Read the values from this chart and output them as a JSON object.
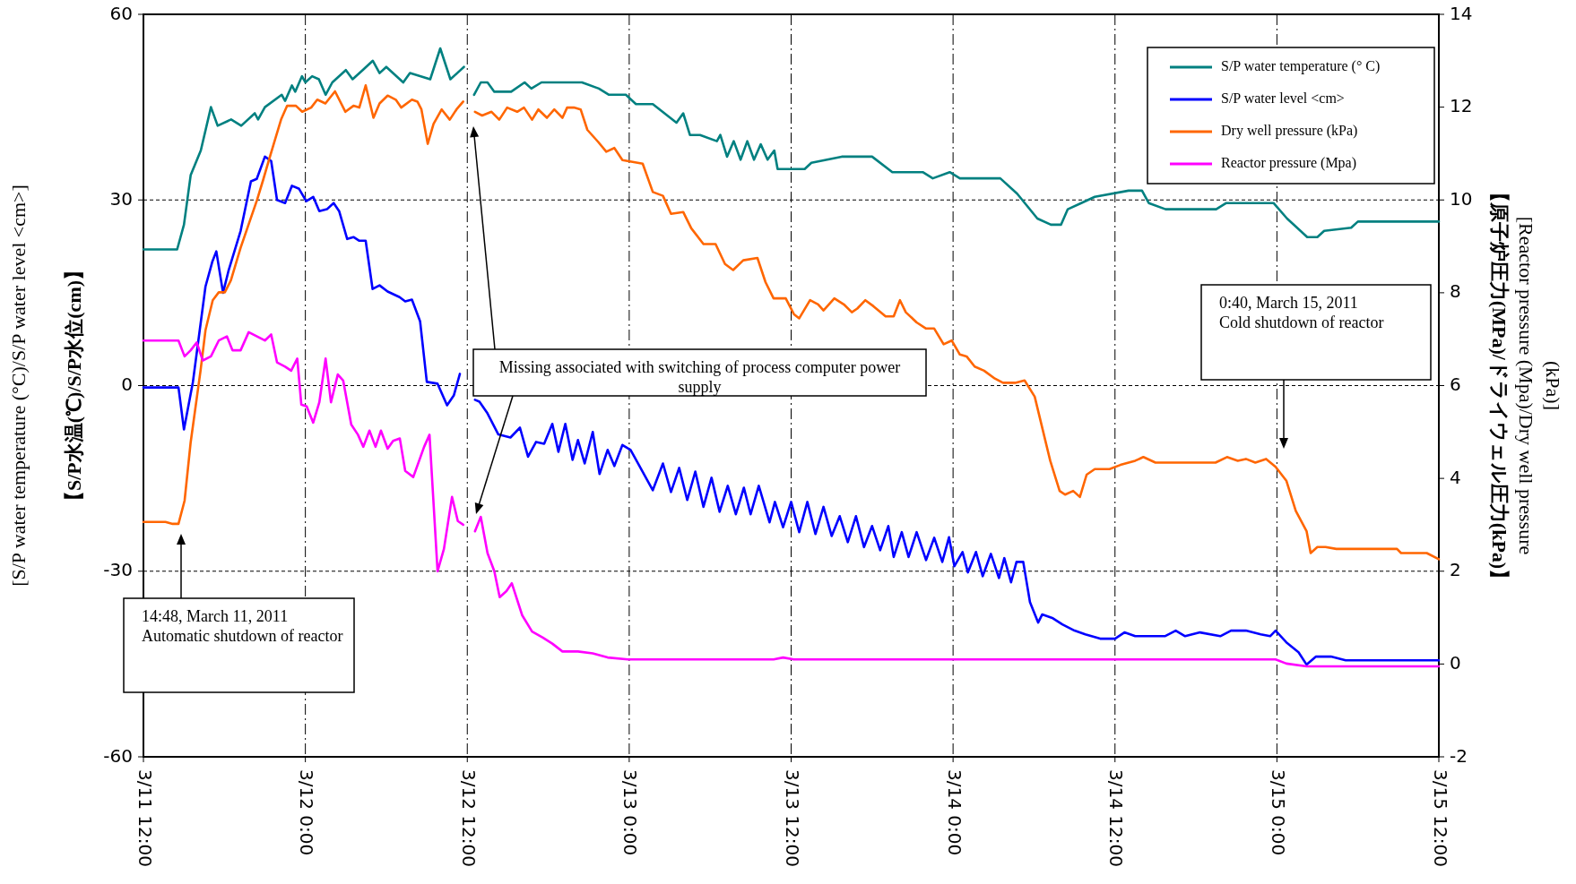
{
  "chart_data": {
    "type": "line",
    "ylabel": "[S/P water temperature (°C)/S/P water level <cm>]\n【S/P水温(℃)/S/P水位(cm)】",
    "y2label": "【原子炉圧力(MPa)/ドライウェル圧力(kPa)】\n[Reactor pressure (Mpa)/Dry well pressure\n(kPa)]",
    "xlim": [
      "2011-03-11T12:00",
      "2011-03-15T12:00"
    ],
    "xticks": [
      {
        "value": "2011-03-11T12:00",
        "label": "3/11 12:00"
      },
      {
        "value": "2011-03-12T00:00",
        "label": "3/12 0:00"
      },
      {
        "value": "2011-03-12T12:00",
        "label": "3/12 12:00"
      },
      {
        "value": "2011-03-13T00:00",
        "label": "3/13 0:00"
      },
      {
        "value": "2011-03-13T12:00",
        "label": "3/13 12:00"
      },
      {
        "value": "2011-03-14T00:00",
        "label": "3/14 0:00"
      },
      {
        "value": "2011-03-14T12:00",
        "label": "3/14 12:00"
      },
      {
        "value": "2011-03-15T00:00",
        "label": "3/15 0:00"
      },
      {
        "value": "2011-03-15T12:00",
        "label": "3/15 12:00"
      }
    ],
    "ylim": [
      -60,
      60
    ],
    "yticks": [
      -60,
      -30,
      0,
      30,
      60
    ],
    "y2lim": [
      -2,
      14
    ],
    "y2ticks": [
      -2,
      0,
      2,
      4,
      6,
      8,
      10,
      12,
      14
    ],
    "grid": true,
    "legend": "top right",
    "line_style": "solid",
    "series": [
      {
        "name": "S/P water temperature (° C)",
        "color": "#008080",
        "x": [
          "2011-03-11T12:00",
          "2011-03-11T14:30",
          "2011-03-11T15:00",
          "2011-03-11T15:30",
          "2011-03-11T16:15",
          "2011-03-11T17:00",
          "2011-03-11T17:30",
          "2011-03-11T18:30",
          "2011-03-11T19:15",
          "2011-03-11T20:15",
          "2011-03-11T20:30",
          "2011-03-11T21:00",
          "2011-03-11T22:15",
          "2011-03-11T22:30",
          "2011-03-11T23:00",
          "2011-03-11T23:15",
          "2011-03-11T23:45",
          "2011-03-12T00:00",
          "2011-03-12T00:30",
          "2011-03-12T01:00",
          "2011-03-12T01:30",
          "2011-03-12T02:00",
          "2011-03-12T03:00",
          "2011-03-12T03:30",
          "2011-03-12T04:15",
          "2011-03-12T05:00",
          "2011-03-12T05:30",
          "2011-03-12T06:00",
          "2011-03-12T07:15",
          "2011-03-12T07:45",
          "2011-03-12T09:15",
          "2011-03-12T10:00",
          "2011-03-12T10:45",
          "2011-03-12T11:15",
          "2011-03-12T11:45"
        ],
        "values": [
          22,
          22,
          26,
          34,
          38,
          45,
          42,
          43,
          42,
          44,
          43,
          45,
          47,
          46,
          48.5,
          47.5,
          50,
          49,
          50,
          49.5,
          47,
          49,
          51,
          49.5,
          51,
          52.5,
          50.5,
          51.5,
          49,
          50.5,
          49.5,
          54.5,
          49.5,
          50.5,
          51.5
        ]
      },
      {
        "color": "#008080",
        "x": [
          "2011-03-12T12:30",
          "2011-03-12T13:00",
          "2011-03-12T13:30",
          "2011-03-12T14:00",
          "2011-03-12T15:15",
          "2011-03-12T16:15",
          "2011-03-12T16:45",
          "2011-03-12T17:30",
          "2011-03-12T20:30",
          "2011-03-12T21:45",
          "2011-03-12T22:30",
          "2011-03-12T23:45",
          "2011-03-13T00:30",
          "2011-03-13T01:45",
          "2011-03-13T03:30",
          "2011-03-13T04:00",
          "2011-03-13T04:30",
          "2011-03-13T05:15",
          "2011-03-13T06:30",
          "2011-03-13T06:45",
          "2011-03-13T07:15",
          "2011-03-13T07:45",
          "2011-03-13T08:15",
          "2011-03-13T08:45",
          "2011-03-13T09:15",
          "2011-03-13T09:45",
          "2011-03-13T10:15",
          "2011-03-13T10:45",
          "2011-03-13T11:00",
          "2011-03-13T13:00",
          "2011-03-13T13:30",
          "2011-03-13T15:45",
          "2011-03-13T18:00",
          "2011-03-13T19:30",
          "2011-03-13T21:45",
          "2011-03-13T22:30",
          "2011-03-13T23:45",
          "2011-03-14T00:30",
          "2011-03-14T03:30",
          "2011-03-14T04:45",
          "2011-03-14T06:15",
          "2011-03-14T07:15",
          "2011-03-14T08:00",
          "2011-03-14T08:30",
          "2011-03-14T09:30",
          "2011-03-14T10:30",
          "2011-03-14T13:00",
          "2011-03-14T14:00",
          "2011-03-14T14:30",
          "2011-03-14T15:45",
          "2011-03-14T19:30",
          "2011-03-14T20:15",
          "2011-03-14T23:45",
          "2011-03-15T00:45",
          "2011-03-15T02:15",
          "2011-03-15T03:00",
          "2011-03-15T03:30",
          "2011-03-15T05:30",
          "2011-03-15T06:00",
          "2011-03-15T12:00"
        ],
        "values": [
          47,
          49,
          49,
          47.5,
          47.5,
          49,
          48,
          49,
          49,
          48,
          47,
          47,
          45.5,
          45.5,
          42.5,
          44,
          40.5,
          40.5,
          39.5,
          40.5,
          37,
          39.5,
          36.5,
          39.5,
          36.5,
          39,
          36.5,
          38,
          35,
          35,
          36,
          37,
          37,
          34.5,
          34.5,
          33.5,
          34.5,
          33.5,
          33.5,
          31,
          27,
          26,
          26,
          28.5,
          29.5,
          30.5,
          31.5,
          31.5,
          29.5,
          28.5,
          28.5,
          29.5,
          29.5,
          27,
          24,
          24,
          25,
          25.5,
          26.5,
          26.5
        ]
      },
      {
        "name": "S/P water level <cm>",
        "color": "#0000ff",
        "x": [
          "2011-03-11T12:00",
          "2011-03-11T14:36",
          "2011-03-11T15:00",
          "2011-03-11T15:40",
          "2011-03-11T16:36",
          "2011-03-11T17:06",
          "2011-03-11T17:24",
          "2011-03-11T17:54",
          "2011-03-11T18:18",
          "2011-03-11T19:12",
          "2011-03-11T19:58",
          "2011-03-11T20:24",
          "2011-03-11T21:00",
          "2011-03-11T21:28",
          "2011-03-11T21:54",
          "2011-03-11T22:30",
          "2011-03-11T23:00",
          "2011-03-11T23:32",
          "2011-03-12T00:04",
          "2011-03-12T00:35",
          "2011-03-12T01:02",
          "2011-03-12T01:36",
          "2011-03-12T02:06",
          "2011-03-12T02:30",
          "2011-03-12T03:06",
          "2011-03-12T03:34",
          "2011-03-12T04:00",
          "2011-03-12T04:28",
          "2011-03-12T04:59",
          "2011-03-12T05:30",
          "2011-03-12T06:06",
          "2011-03-12T06:59",
          "2011-03-12T07:24",
          "2011-03-12T07:54",
          "2011-03-12T08:30",
          "2011-03-12T09:00",
          "2011-03-12T09:48",
          "2011-03-12T10:30",
          "2011-03-12T11:00",
          "2011-03-12T11:27"
        ],
        "values": [
          -0.3,
          -0.3,
          -7.1,
          0.6,
          16,
          20,
          21.7,
          15,
          18.5,
          25,
          33,
          33.4,
          37,
          36.3,
          30,
          29.5,
          32.3,
          31.8,
          29.8,
          30.5,
          28.2,
          28.5,
          29.5,
          28.2,
          23.7,
          24,
          23.4,
          23.4,
          15.6,
          16.2,
          15.2,
          14.3,
          13.6,
          13.9,
          10.4,
          0.6,
          0.3,
          -3.2,
          -1.6,
          1.9
        ]
      },
      {
        "color": "#0000ff",
        "x": [
          "2011-03-12T12:34",
          "2011-03-12T12:54",
          "2011-03-12T13:30",
          "2011-03-12T14:18",
          "2011-03-12T15:12",
          "2011-03-12T15:54",
          "2011-03-12T16:30",
          "2011-03-12T17:06",
          "2011-03-12T17:42",
          "2011-03-12T18:18",
          "2011-03-12T18:45",
          "2011-03-12T19:16",
          "2011-03-12T19:48",
          "2011-03-12T20:12",
          "2011-03-12T20:42",
          "2011-03-12T21:18",
          "2011-03-12T21:48",
          "2011-03-12T22:24",
          "2011-03-12T22:54",
          "2011-03-12T23:30",
          "2011-03-13T00:06",
          "2011-03-13T01:45",
          "2011-03-13T02:30",
          "2011-03-13T03:06",
          "2011-03-13T03:42",
          "2011-03-13T04:18",
          "2011-03-13T04:54",
          "2011-03-13T05:30",
          "2011-03-13T06:06",
          "2011-03-13T06:42",
          "2011-03-13T07:18",
          "2011-03-13T07:54",
          "2011-03-13T08:30",
          "2011-03-13T09:00",
          "2011-03-13T09:36",
          "2011-03-13T10:24",
          "2011-03-13T10:48",
          "2011-03-13T11:24",
          "2011-03-13T12:00",
          "2011-03-13T12:36",
          "2011-03-13T13:12",
          "2011-03-13T13:48",
          "2011-03-13T14:24",
          "2011-03-13T15:00",
          "2011-03-13T15:36",
          "2011-03-13T16:12",
          "2011-03-13T16:48",
          "2011-03-13T17:24",
          "2011-03-13T18:00",
          "2011-03-13T18:36",
          "2011-03-13T19:12",
          "2011-03-13T19:36",
          "2011-03-13T20:12",
          "2011-03-13T20:42",
          "2011-03-13T21:18",
          "2011-03-13T22:00",
          "2011-03-13T22:36",
          "2011-03-13T23:12",
          "2011-03-13T23:42",
          "2011-03-14T00:06",
          "2011-03-14T00:42",
          "2011-03-14T01:06",
          "2011-03-14T01:42",
          "2011-03-14T02:12",
          "2011-03-14T02:48",
          "2011-03-14T03:24",
          "2011-03-14T03:48",
          "2011-03-14T04:18",
          "2011-03-14T04:42",
          "2011-03-14T05:12",
          "2011-03-14T05:42",
          "2011-03-14T06:18",
          "2011-03-14T06:36",
          "2011-03-14T07:24",
          "2011-03-14T08:06",
          "2011-03-14T09:00",
          "2011-03-14T09:48",
          "2011-03-14T10:54",
          "2011-03-14T12:00",
          "2011-03-14T12:42",
          "2011-03-14T13:30",
          "2011-03-14T15:42",
          "2011-03-14T16:30",
          "2011-03-14T17:12",
          "2011-03-14T18:18",
          "2011-03-14T19:48",
          "2011-03-14T20:36",
          "2011-03-14T21:42",
          "2011-03-14T22:48",
          "2011-03-14T23:30",
          "2011-03-14T23:54",
          "2011-03-15T00:42",
          "2011-03-15T01:36",
          "2011-03-15T02:12",
          "2011-03-15T02:54",
          "2011-03-15T04:00",
          "2011-03-15T05:06",
          "2011-03-15T12:00"
        ],
        "values": [
          -2.3,
          -2.6,
          -4.5,
          -7.9,
          -8.4,
          -6.8,
          -11.5,
          -9.1,
          -9.4,
          -6.2,
          -10.7,
          -6.2,
          -12,
          -8.8,
          -12.6,
          -7.5,
          -14.3,
          -10.4,
          -13,
          -9.6,
          -10.4,
          -16.9,
          -12.6,
          -17.2,
          -13.3,
          -18.5,
          -13.9,
          -19.6,
          -14.9,
          -20.4,
          -16.2,
          -20.8,
          -16.5,
          -20.8,
          -16.2,
          -22.1,
          -18.8,
          -22.9,
          -18.8,
          -23.7,
          -18.8,
          -24,
          -19.6,
          -24.3,
          -21.1,
          -25.3,
          -21.1,
          -26.1,
          -22.7,
          -26.6,
          -22.7,
          -27.7,
          -23.7,
          -27.7,
          -23.7,
          -28.2,
          -24.6,
          -28.5,
          -24.5,
          -29.2,
          -26.9,
          -30.2,
          -26.9,
          -30.8,
          -27.2,
          -31.1,
          -27.9,
          -31.8,
          -28.5,
          -28.5,
          -35,
          -38.3,
          -37,
          -37.6,
          -38.6,
          -39.6,
          -40.2,
          -40.9,
          -40.9,
          -39.9,
          -40.5,
          -40.5,
          -39.6,
          -40.5,
          -39.9,
          -40.5,
          -39.6,
          -39.6,
          -40.2,
          -40.5,
          -39.6,
          -41.5,
          -43.1,
          -45.1,
          -43.8,
          -43.8,
          -44.4,
          -44.4
        ]
      },
      {
        "name": "Dry well pressure (kPa)",
        "color": "#ff6600",
        "axis": "y2",
        "x": [
          "2011-03-11T12:00",
          "2011-03-11T13:38",
          "2011-03-11T14:10",
          "2011-03-11T14:36",
          "2011-03-11T15:03",
          "2011-03-11T15:30",
          "2011-03-11T16:14",
          "2011-03-11T16:36",
          "2011-03-11T17:08",
          "2011-03-11T17:35",
          "2011-03-11T18:02",
          "2011-03-11T18:29",
          "2011-03-11T19:12",
          "2011-03-11T20:25",
          "2011-03-11T20:52",
          "2011-03-11T21:18",
          "2011-03-11T21:45",
          "2011-03-11T22:12",
          "2011-03-11T22:39",
          "2011-03-11T23:18",
          "2011-03-11T23:46",
          "2011-03-12T00:26",
          "2011-03-12T00:53",
          "2011-03-12T01:29",
          "2011-03-12T02:12",
          "2011-03-12T02:58",
          "2011-03-12T03:34",
          "2011-03-12T04:00",
          "2011-03-12T04:28",
          "2011-03-12T05:03",
          "2011-03-12T05:30",
          "2011-03-12T06:06",
          "2011-03-12T06:42",
          "2011-03-12T07:06",
          "2011-03-12T07:54",
          "2011-03-12T08:18",
          "2011-03-12T08:36",
          "2011-03-12T09:04",
          "2011-03-12T09:30",
          "2011-03-12T10:06",
          "2011-03-12T10:42",
          "2011-03-12T11:12",
          "2011-03-12T11:42"
        ],
        "values": [
          3.06,
          3.06,
          3.02,
          3.02,
          3.52,
          4.78,
          6.32,
          7.19,
          7.84,
          8.01,
          8.01,
          8.27,
          8.97,
          10.0,
          10.43,
          10.86,
          11.3,
          11.73,
          12.03,
          12.03,
          11.9,
          11.99,
          12.16,
          12.08,
          12.34,
          11.9,
          12.03,
          11.99,
          12.47,
          11.77,
          12.08,
          12.25,
          12.16,
          11.99,
          12.16,
          12.12,
          11.95,
          11.21,
          11.64,
          11.95,
          11.73,
          11.95,
          12.12
        ]
      },
      {
        "color": "#ff6600",
        "axis": "y2",
        "x": [
          "2011-03-12T12:34",
          "2011-03-12T13:06",
          "2011-03-12T13:48",
          "2011-03-12T14:22",
          "2011-03-12T14:57",
          "2011-03-12T15:42",
          "2011-03-12T16:12",
          "2011-03-12T16:48",
          "2011-03-12T17:16",
          "2011-03-12T17:54",
          "2011-03-12T18:27",
          "2011-03-12T19:03",
          "2011-03-12T19:24",
          "2011-03-12T19:54",
          "2011-03-12T20:24",
          "2011-03-12T20:54",
          "2011-03-12T21:42",
          "2011-03-12T22:18",
          "2011-03-12T22:54",
          "2011-03-12T23:30",
          "2011-03-13T01:00",
          "2011-03-13T01:45",
          "2011-03-13T02:30",
          "2011-03-13T03:06",
          "2011-03-13T04:00",
          "2011-03-13T04:36",
          "2011-03-13T05:30",
          "2011-03-13T06:24",
          "2011-03-13T07:06",
          "2011-03-13T07:42",
          "2011-03-13T08:27",
          "2011-03-13T09:30",
          "2011-03-13T10:06",
          "2011-03-13T10:42",
          "2011-03-13T11:36",
          "2011-03-13T12:12",
          "2011-03-13T12:36",
          "2011-03-13T13:24",
          "2011-03-13T14:00",
          "2011-03-13T14:24",
          "2011-03-13T15:12",
          "2011-03-13T15:54",
          "2011-03-13T16:30",
          "2011-03-13T16:54",
          "2011-03-13T17:30",
          "2011-03-13T18:06",
          "2011-03-13T19:00",
          "2011-03-13T19:36",
          "2011-03-13T20:04",
          "2011-03-13T20:30",
          "2011-03-13T21:18",
          "2011-03-13T22:00",
          "2011-03-13T22:36",
          "2011-03-13T23:18",
          "2011-03-13T23:54",
          "2011-03-14T00:30",
          "2011-03-14T01:00",
          "2011-03-14T01:36",
          "2011-03-14T02:18",
          "2011-03-14T03:06",
          "2011-03-14T03:42",
          "2011-03-14T04:36",
          "2011-03-14T05:18",
          "2011-03-14T06:03",
          "2011-03-14T06:48",
          "2011-03-14T07:12",
          "2011-03-14T07:54",
          "2011-03-14T08:18",
          "2011-03-14T08:54",
          "2011-03-14T09:24",
          "2011-03-14T09:54",
          "2011-03-14T10:30",
          "2011-03-14T11:36",
          "2011-03-14T12:24",
          "2011-03-14T13:30",
          "2011-03-14T14:06",
          "2011-03-14T15:00",
          "2011-03-14T19:27",
          "2011-03-14T20:18",
          "2011-03-14T21:06",
          "2011-03-14T21:42",
          "2011-03-14T22:24",
          "2011-03-14T23:12",
          "2011-03-14T23:54",
          "2011-03-15T00:42",
          "2011-03-15T01:24",
          "2011-03-15T02:12",
          "2011-03-15T02:30",
          "2011-03-15T03:00",
          "2011-03-15T03:36",
          "2011-03-15T04:24",
          "2011-03-15T08:54",
          "2011-03-15T09:12",
          "2011-03-15T11:06",
          "2011-03-15T12:00"
        ],
        "values": [
          11.9,
          11.82,
          11.9,
          11.73,
          11.99,
          11.9,
          11.99,
          11.73,
          11.95,
          11.77,
          11.95,
          11.77,
          11.99,
          11.99,
          11.95,
          11.51,
          11.25,
          11.04,
          11.12,
          10.86,
          10.78,
          10.17,
          10.09,
          9.7,
          9.74,
          9.39,
          9.05,
          9.05,
          8.62,
          8.49,
          8.7,
          8.75,
          8.23,
          7.88,
          7.88,
          7.54,
          7.45,
          7.84,
          7.75,
          7.62,
          7.88,
          7.75,
          7.58,
          7.66,
          7.84,
          7.71,
          7.49,
          7.49,
          7.84,
          7.58,
          7.36,
          7.23,
          7.23,
          6.89,
          6.97,
          6.67,
          6.63,
          6.41,
          6.32,
          6.15,
          6.06,
          6.06,
          6.11,
          5.76,
          4.86,
          4.38,
          3.73,
          3.65,
          3.73,
          3.6,
          4.08,
          4.2,
          4.2,
          4.29,
          4.38,
          4.46,
          4.34,
          4.34,
          4.46,
          4.38,
          4.42,
          4.34,
          4.42,
          4.25,
          3.95,
          3.3,
          2.86,
          2.39,
          2.52,
          2.52,
          2.48,
          2.48,
          2.39,
          2.39,
          2.26
        ]
      },
      {
        "name": "Reactor pressure (Mpa)",
        "color": "#ff00ff",
        "axis": "y2",
        "x": [
          "2011-03-11T12:00",
          "2011-03-11T14:36",
          "2011-03-11T15:03",
          "2011-03-11T15:30",
          "2011-03-11T15:57",
          "2011-03-11T16:24",
          "2011-03-11T17:00",
          "2011-03-11T17:35",
          "2011-03-11T18:11",
          "2011-03-11T18:36",
          "2011-03-11T19:12",
          "2011-03-11T19:48",
          "2011-03-11T20:25",
          "2011-03-11T21:00",
          "2011-03-11T21:28",
          "2011-03-11T21:54",
          "2011-03-11T22:30",
          "2011-03-11T22:57",
          "2011-03-11T23:24",
          "2011-03-11T23:42",
          "2011-03-12T00:06",
          "2011-03-12T00:35",
          "2011-03-12T01:02",
          "2011-03-12T01:30",
          "2011-03-12T01:54",
          "2011-03-12T02:24",
          "2011-03-12T02:48",
          "2011-03-12T03:24",
          "2011-03-12T03:54",
          "2011-03-12T04:18",
          "2011-03-12T04:45",
          "2011-03-12T05:12",
          "2011-03-12T05:36",
          "2011-03-12T06:06",
          "2011-03-12T06:30",
          "2011-03-12T07:00",
          "2011-03-12T07:24",
          "2011-03-12T08:00",
          "2011-03-12T08:48",
          "2011-03-12T09:12",
          "2011-03-12T09:48",
          "2011-03-12T10:16",
          "2011-03-12T10:52",
          "2011-03-12T11:18",
          "2011-03-12T11:42"
        ],
        "values": [
          6.97,
          6.97,
          6.63,
          6.76,
          6.93,
          6.54,
          6.63,
          6.97,
          7.06,
          6.76,
          6.76,
          7.15,
          7.06,
          6.97,
          7.1,
          6.5,
          6.41,
          6.32,
          6.58,
          5.59,
          5.55,
          5.2,
          5.64,
          6.58,
          5.64,
          6.24,
          6.11,
          5.16,
          4.94,
          4.68,
          5.03,
          4.68,
          5.03,
          4.64,
          4.81,
          4.86,
          4.16,
          4.03,
          4.68,
          4.94,
          2.0,
          2.48,
          3.6,
          3.08,
          3.0
        ]
      },
      {
        "color": "#ff00ff",
        "axis": "y2",
        "x": [
          "2011-03-12T12:34",
          "2011-03-12T13:00",
          "2011-03-12T13:30",
          "2011-03-12T14:00",
          "2011-03-12T14:24",
          "2011-03-12T14:54",
          "2011-03-12T15:18",
          "2011-03-12T16:04",
          "2011-03-12T16:48",
          "2011-03-12T17:36",
          "2011-03-12T18:18",
          "2011-03-12T19:03",
          "2011-03-12T20:12",
          "2011-03-12T21:18",
          "2011-03-12T22:24",
          "2011-03-12T23:54",
          "2011-03-13T10:42",
          "2011-03-13T11:24",
          "2011-03-13T12:12",
          "2011-03-14T23:54",
          "2011-03-15T00:42",
          "2011-03-15T02:12",
          "2011-03-15T12:00"
        ],
        "values": [
          2.86,
          3.17,
          2.39,
          2.0,
          1.44,
          1.57,
          1.74,
          1.05,
          0.7,
          0.57,
          0.44,
          0.27,
          0.27,
          0.23,
          0.14,
          0.1,
          0.1,
          0.14,
          0.1,
          0.1,
          0.01,
          -0.05,
          -0.05
        ]
      }
    ],
    "annotations": [
      "14:48, March 11, 2011\nAutomatic shutdown of reactor",
      "Missing associated with switching of process computer power supply",
      "0:40, March 15, 2011\nCold shutdown of reactor"
    ]
  }
}
